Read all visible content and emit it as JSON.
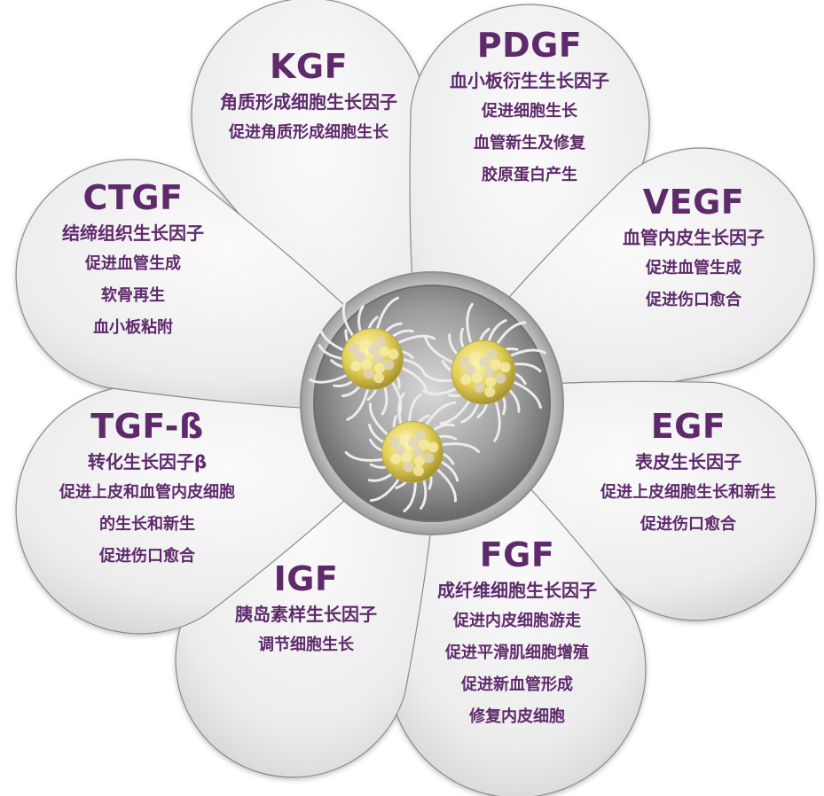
{
  "colors": {
    "text": "#5e2a6b",
    "petal_fill_light": "#f4f4f4",
    "petal_fill_dark": "#d2d2d2",
    "petal_stroke": "#8a8a8a",
    "center_ring": "#b9b9b9",
    "cell_body": "#e8d86a"
  },
  "center": {
    "icon": "platelet-cells-icon"
  },
  "petals": [
    {
      "id": "kgf",
      "title": "KGF",
      "subtitle": "角质形成细胞生长因子",
      "lines": [
        "促进角质形成细胞生长"
      ]
    },
    {
      "id": "pdgf",
      "title": "PDGF",
      "subtitle": "血小板衍生生长因子",
      "lines": [
        "促进细胞生长",
        "血管新生及修复",
        "胶原蛋白产生"
      ]
    },
    {
      "id": "vegf",
      "title": "VEGF",
      "subtitle": "血管内皮生长因子",
      "lines": [
        "促进血管生成",
        "促进伤口愈合"
      ]
    },
    {
      "id": "egf",
      "title": "EGF",
      "subtitle": "表皮生长因子",
      "lines": [
        "促进上皮细胞生长和新生",
        "促进伤口愈合"
      ]
    },
    {
      "id": "fgf",
      "title": "FGF",
      "subtitle": "成纤维细胞生长因子",
      "lines": [
        "促进内皮细胞游走",
        "促进平滑肌细胞增殖",
        "促进新血管形成",
        "修复内皮细胞"
      ]
    },
    {
      "id": "igf",
      "title": "IGF",
      "subtitle": "胰岛素样生长因子",
      "lines": [
        "调节细胞生长"
      ]
    },
    {
      "id": "tgf",
      "title": "TGF-ß",
      "subtitle": "转化生长因子β",
      "lines": [
        "促进上皮和血管内皮细胞",
        "的生长和新生",
        "促进伤口愈合"
      ]
    },
    {
      "id": "ctgf",
      "title": "CTGF",
      "subtitle": "结缔组织生长因子",
      "lines": [
        "促进血管生成",
        "软骨再生",
        "血小板粘附"
      ]
    }
  ]
}
